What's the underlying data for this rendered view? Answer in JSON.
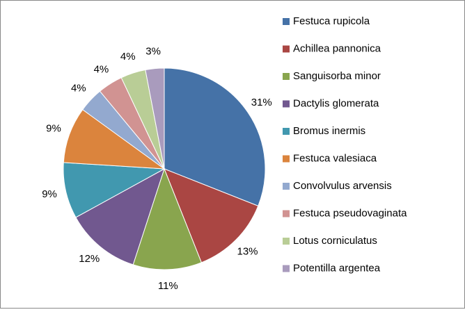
{
  "chart_data": {
    "type": "pie",
    "categories": [
      "Festuca rupicola",
      "Achillea pannonica",
      "Sanguisorba minor",
      "Dactylis glomerata",
      "Bromus inermis",
      "Festuca valesiaca",
      "Convolvulus arvensis",
      "Festuca pseudovaginata",
      "Lotus corniculatus",
      "Potentilla argentea"
    ],
    "values": [
      31,
      13,
      11,
      12,
      9,
      9,
      4,
      4,
      4,
      3
    ],
    "value_labels": [
      "31%",
      "13%",
      "11%",
      "12%",
      "9%",
      "9%",
      "4%",
      "4%",
      "4%",
      "3%"
    ],
    "colors": [
      "#4572A7",
      "#AA4643",
      "#89A54E",
      "#71588F",
      "#4198AF",
      "#DB843D",
      "#93A9CF",
      "#D19392",
      "#B9CD96",
      "#A99BBD"
    ],
    "legend": "right"
  }
}
